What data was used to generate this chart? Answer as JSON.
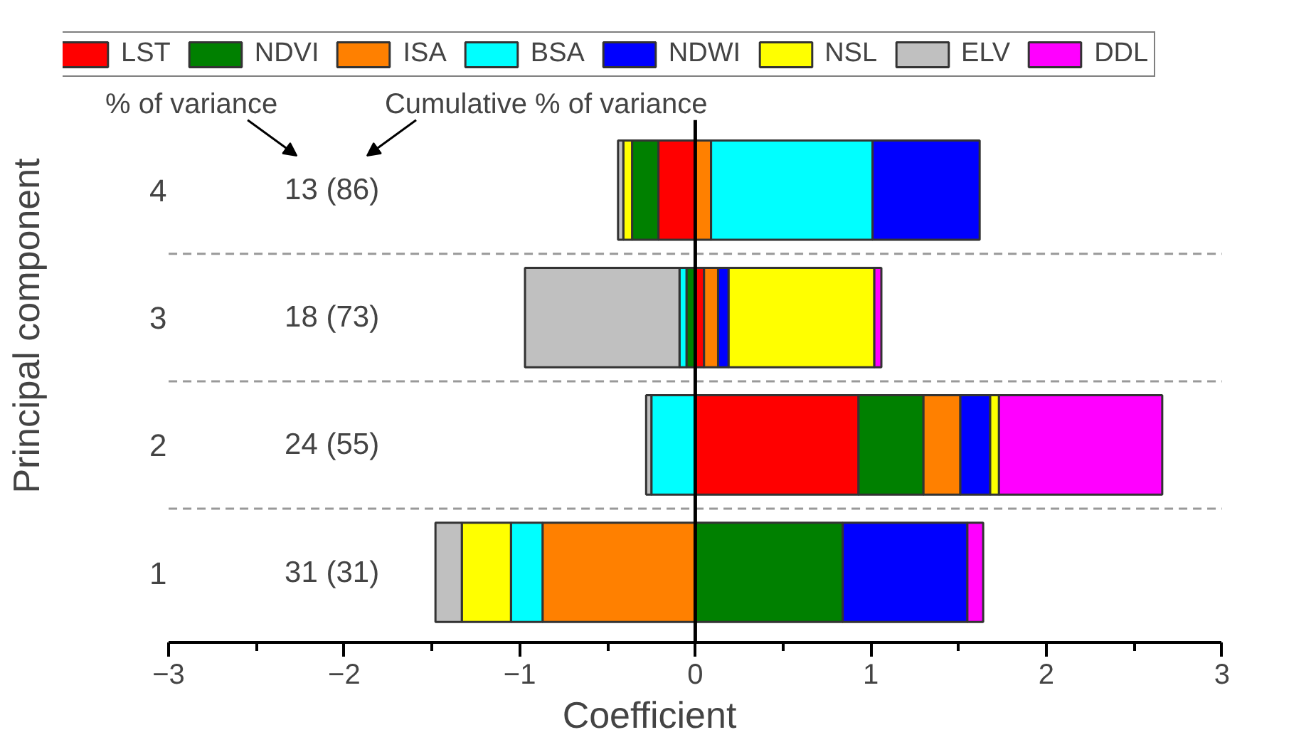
{
  "chart_data": {
    "type": "bar",
    "orientation": "horizontal",
    "stacked": true,
    "categories": [
      "4",
      "3",
      "2",
      "1"
    ],
    "xlabel": "Coefficient",
    "ylabel": "Principal component",
    "xlim": [
      -3,
      3
    ],
    "xticks": [
      {
        "value": -3,
        "label": "−3"
      },
      {
        "value": -2,
        "label": "−2"
      },
      {
        "value": -1,
        "label": "−1"
      },
      0,
      1,
      2,
      3
    ],
    "series": [
      {
        "name": "LST",
        "color": "#ff0000",
        "values": [
          -0.21,
          0.05,
          0.93,
          null
        ]
      },
      {
        "name": "NDVI",
        "color": "#008000",
        "values": [
          -0.15,
          -0.05,
          0.37,
          0.84
        ]
      },
      {
        "name": "ISA",
        "color": "#ff8000",
        "values": [
          0.09,
          0.08,
          0.21,
          -0.87
        ]
      },
      {
        "name": "BSA",
        "color": "#00ffff",
        "values": [
          0.92,
          -0.04,
          -0.25,
          -0.18
        ]
      },
      {
        "name": "NDWI",
        "color": "#0000ff",
        "values": [
          0.61,
          0.06,
          0.17,
          0.71
        ]
      },
      {
        "name": "NSL",
        "color": "#ffff00",
        "values": [
          -0.05,
          0.83,
          0.05,
          -0.28
        ]
      },
      {
        "name": "ELV",
        "color": "#c0c0c0",
        "values": [
          -0.03,
          -0.88,
          -0.03,
          -0.15
        ]
      },
      {
        "name": "DDL",
        "color": "#ff00ff",
        "values": [
          null,
          0.04,
          0.93,
          0.09
        ]
      }
    ],
    "annotations": [
      "% of variance",
      "Cumulative % of variance",
      "13 (86)",
      "18 (73)",
      "24 (55)",
      "31 (31)"
    ],
    "ref_lines": [
      {
        "axis": "x",
        "value": 0,
        "color": "#000000"
      }
    ],
    "grid": "y",
    "legend": "top"
  }
}
